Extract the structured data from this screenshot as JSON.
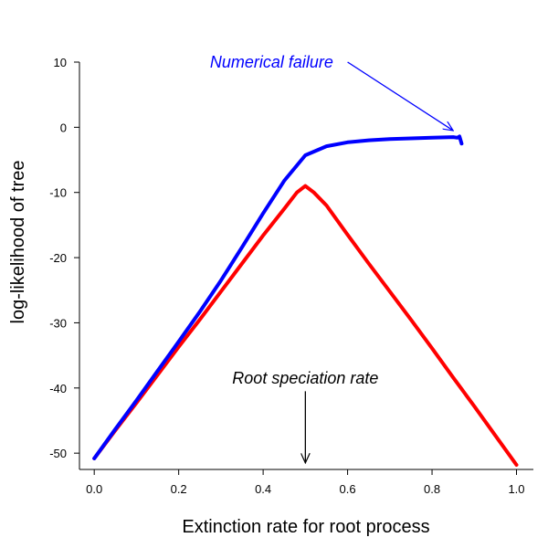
{
  "chart_data": {
    "type": "line",
    "title": "",
    "xlabel": "Extinction rate for root process",
    "ylabel": "log-likelihood of tree",
    "xlim": [
      -0.035,
      1.04
    ],
    "ylim": [
      -52.5,
      10
    ],
    "xticks": [
      0.0,
      0.2,
      0.4,
      0.6,
      0.8,
      1.0
    ],
    "xtick_labels": [
      "0.0",
      "0.2",
      "0.4",
      "0.6",
      "0.8",
      "1.0"
    ],
    "yticks": [
      10,
      0,
      -10,
      -20,
      -30,
      -40,
      -50
    ],
    "ytick_labels": [
      "10",
      "0",
      "-10",
      "-20",
      "-30",
      "-40",
      "-50"
    ],
    "grid": false,
    "series": [
      {
        "color": "#ff0000",
        "x": [
          0.0,
          0.05,
          0.1,
          0.15,
          0.2,
          0.25,
          0.3,
          0.35,
          0.4,
          0.45,
          0.48,
          0.5,
          0.52,
          0.55,
          0.6,
          0.65,
          0.7,
          0.75,
          0.8,
          0.85,
          0.9,
          0.95,
          1.0
        ],
        "y": [
          -50.8,
          -46.5,
          -42.3,
          -38.0,
          -33.7,
          -29.5,
          -25.2,
          -20.9,
          -16.6,
          -12.5,
          -10.0,
          -9.0,
          -10.0,
          -12.0,
          -16.5,
          -20.9,
          -25.2,
          -29.5,
          -33.9,
          -38.4,
          -42.8,
          -47.3,
          -51.8
        ]
      },
      {
        "color": "#0000ff",
        "x": [
          0.0,
          0.05,
          0.1,
          0.15,
          0.2,
          0.25,
          0.3,
          0.35,
          0.4,
          0.45,
          0.5,
          0.55,
          0.6,
          0.65,
          0.7,
          0.75,
          0.8,
          0.85,
          0.86,
          0.865,
          0.87
        ],
        "y": [
          -50.8,
          -46.3,
          -41.9,
          -37.4,
          -32.9,
          -28.3,
          -23.5,
          -18.4,
          -13.2,
          -8.2,
          -4.3,
          -2.9,
          -2.3,
          -2.0,
          -1.8,
          -1.7,
          -1.6,
          -1.5,
          -1.6,
          -1.4,
          -2.5
        ]
      }
    ],
    "annotations": [
      {
        "text": "Numerical failure",
        "color": "#0000ff",
        "text_x": 0.42,
        "text_y": 10,
        "arrow_from": [
          0.6,
          10
        ],
        "arrow_to": [
          0.85,
          -0.5
        ]
      },
      {
        "text": "Root speciation rate",
        "color": "#000000",
        "text_x": 0.5,
        "text_y": -38.5,
        "arrow_from": [
          0.5,
          -40.5
        ],
        "arrow_to": [
          0.5,
          -51.5
        ]
      }
    ]
  }
}
